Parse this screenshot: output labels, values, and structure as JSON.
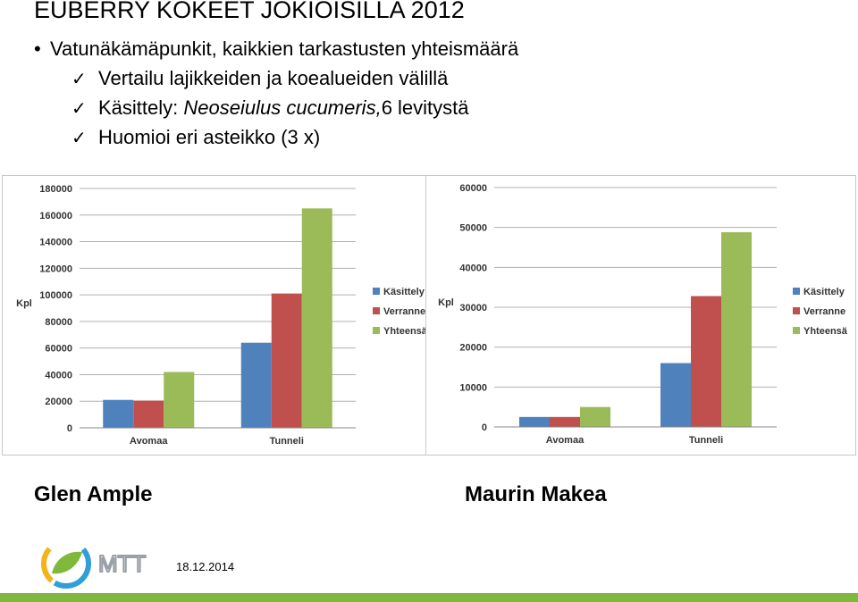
{
  "title": "EUBERRY KOKEET JOKIOISILLA 2012",
  "bullet": "Vatunäkämäpunkit, kaikkien tarkastusten yhteismäärä",
  "checks": {
    "c1": "Vertailu lajikkeiden ja koealueiden välillä",
    "c2_prefix": "Käsittely: ",
    "c2_italic": "Neoseiulus cucumeris,",
    "c2_suffix": "6 levitystä",
    "c3": "Huomioi eri asteikko  (3 x)"
  },
  "captions": {
    "left": "Glen Ample",
    "right": "Maurin Makea"
  },
  "logo_text": "MTT",
  "date": "18.12.2014",
  "colors": {
    "kasittely": "#4f81bd",
    "verranne": "#c0504d",
    "yhteensa": "#9bbb59",
    "footer": "#7fb83a"
  },
  "chart_data": [
    {
      "type": "bar",
      "ylabel": "Kpl",
      "ylim": [
        0,
        180000
      ],
      "yticks": [
        "0",
        "20000",
        "40000",
        "60000",
        "80000",
        "100000",
        "120000",
        "140000",
        "160000",
        "180000"
      ],
      "categories": [
        "Avomaa",
        "Tunneli"
      ],
      "series": [
        {
          "name": "Käsittely",
          "values": [
            21000,
            64000
          ]
        },
        {
          "name": "Verranne",
          "values": [
            20500,
            101000
          ]
        },
        {
          "name": "Yhteensä",
          "values": [
            42000,
            165000
          ]
        }
      ],
      "grid": true,
      "legend": "right"
    },
    {
      "type": "bar",
      "ylabel": "Kpl",
      "ylim": [
        0,
        60000
      ],
      "yticks": [
        "0",
        "10000",
        "20000",
        "30000",
        "40000",
        "50000",
        "60000"
      ],
      "categories": [
        "Avomaa",
        "Tunneli"
      ],
      "series": [
        {
          "name": "Käsittely",
          "values": [
            2500,
            16000
          ]
        },
        {
          "name": "Verranne",
          "values": [
            2500,
            32800
          ]
        },
        {
          "name": "Yhteensä",
          "values": [
            5000,
            48800
          ]
        }
      ],
      "grid": true,
      "legend": "right"
    }
  ]
}
